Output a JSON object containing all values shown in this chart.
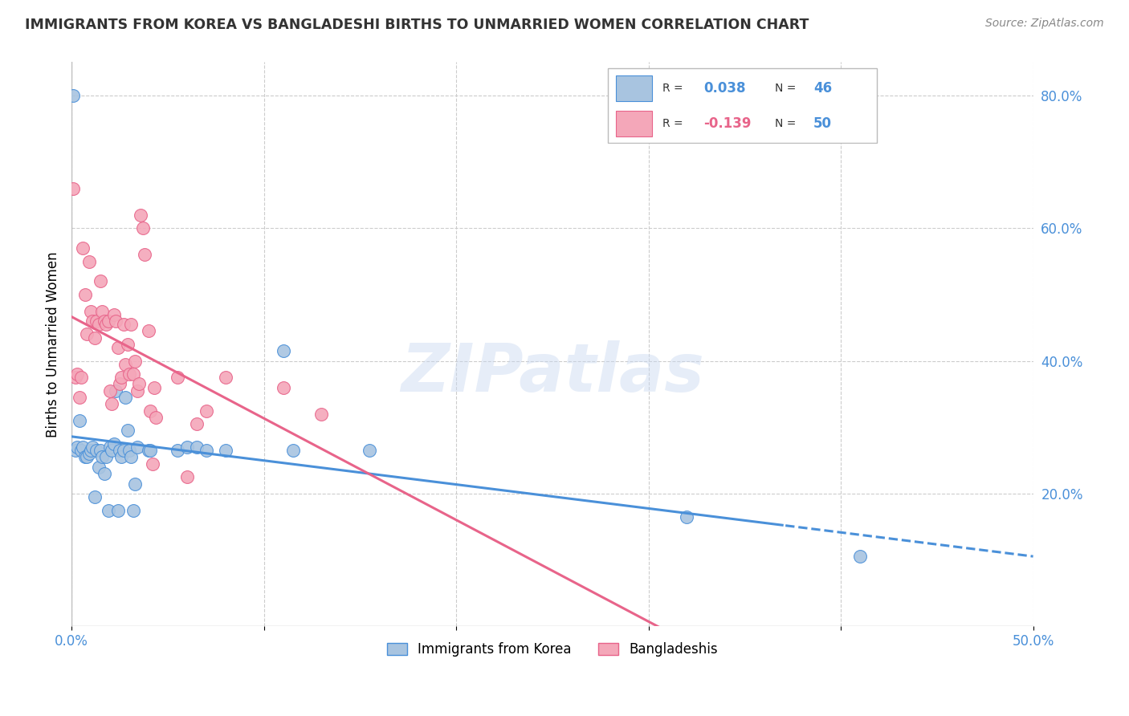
{
  "title": "IMMIGRANTS FROM KOREA VS BANGLADESHI BIRTHS TO UNMARRIED WOMEN CORRELATION CHART",
  "source": "Source: ZipAtlas.com",
  "ylabel": "Births to Unmarried Women",
  "x_min": 0.0,
  "x_max": 0.5,
  "y_min": 0.0,
  "y_max": 0.85,
  "x_ticks": [
    0.0,
    0.1,
    0.2,
    0.3,
    0.4,
    0.5
  ],
  "x_tick_labels": [
    "0.0%",
    "",
    "",
    "",
    "",
    "50.0%"
  ],
  "y_ticks_right": [
    0.2,
    0.4,
    0.6,
    0.8
  ],
  "y_tick_labels_right": [
    "20.0%",
    "40.0%",
    "60.0%",
    "80.0%"
  ],
  "color_blue": "#a8c4e0",
  "color_pink": "#f4a7b9",
  "line_blue": "#4a90d9",
  "line_pink": "#e8648a",
  "watermark": "ZIPatlas",
  "korea_data": [
    [
      0.001,
      0.8
    ],
    [
      0.002,
      0.265
    ],
    [
      0.003,
      0.27
    ],
    [
      0.004,
      0.31
    ],
    [
      0.005,
      0.265
    ],
    [
      0.006,
      0.27
    ],
    [
      0.007,
      0.255
    ],
    [
      0.008,
      0.255
    ],
    [
      0.009,
      0.26
    ],
    [
      0.01,
      0.265
    ],
    [
      0.011,
      0.27
    ],
    [
      0.012,
      0.195
    ],
    [
      0.013,
      0.265
    ],
    [
      0.014,
      0.24
    ],
    [
      0.015,
      0.265
    ],
    [
      0.016,
      0.255
    ],
    [
      0.017,
      0.23
    ],
    [
      0.018,
      0.255
    ],
    [
      0.019,
      0.175
    ],
    [
      0.02,
      0.27
    ],
    [
      0.021,
      0.265
    ],
    [
      0.022,
      0.275
    ],
    [
      0.023,
      0.355
    ],
    [
      0.024,
      0.175
    ],
    [
      0.025,
      0.265
    ],
    [
      0.026,
      0.255
    ],
    [
      0.027,
      0.265
    ],
    [
      0.028,
      0.345
    ],
    [
      0.029,
      0.295
    ],
    [
      0.03,
      0.265
    ],
    [
      0.031,
      0.255
    ],
    [
      0.032,
      0.175
    ],
    [
      0.033,
      0.215
    ],
    [
      0.034,
      0.27
    ],
    [
      0.04,
      0.265
    ],
    [
      0.041,
      0.265
    ],
    [
      0.055,
      0.265
    ],
    [
      0.06,
      0.27
    ],
    [
      0.065,
      0.27
    ],
    [
      0.07,
      0.265
    ],
    [
      0.08,
      0.265
    ],
    [
      0.11,
      0.415
    ],
    [
      0.115,
      0.265
    ],
    [
      0.155,
      0.265
    ],
    [
      0.32,
      0.165
    ],
    [
      0.41,
      0.105
    ]
  ],
  "bangla_data": [
    [
      0.001,
      0.66
    ],
    [
      0.002,
      0.375
    ],
    [
      0.003,
      0.38
    ],
    [
      0.004,
      0.345
    ],
    [
      0.005,
      0.375
    ],
    [
      0.006,
      0.57
    ],
    [
      0.007,
      0.5
    ],
    [
      0.008,
      0.44
    ],
    [
      0.009,
      0.55
    ],
    [
      0.01,
      0.475
    ],
    [
      0.011,
      0.46
    ],
    [
      0.012,
      0.435
    ],
    [
      0.013,
      0.46
    ],
    [
      0.014,
      0.455
    ],
    [
      0.015,
      0.52
    ],
    [
      0.016,
      0.475
    ],
    [
      0.017,
      0.46
    ],
    [
      0.018,
      0.455
    ],
    [
      0.019,
      0.46
    ],
    [
      0.02,
      0.355
    ],
    [
      0.021,
      0.335
    ],
    [
      0.022,
      0.47
    ],
    [
      0.023,
      0.46
    ],
    [
      0.024,
      0.42
    ],
    [
      0.025,
      0.365
    ],
    [
      0.026,
      0.375
    ],
    [
      0.027,
      0.455
    ],
    [
      0.028,
      0.395
    ],
    [
      0.029,
      0.425
    ],
    [
      0.03,
      0.38
    ],
    [
      0.031,
      0.455
    ],
    [
      0.032,
      0.38
    ],
    [
      0.033,
      0.4
    ],
    [
      0.034,
      0.355
    ],
    [
      0.035,
      0.365
    ],
    [
      0.036,
      0.62
    ],
    [
      0.037,
      0.6
    ],
    [
      0.038,
      0.56
    ],
    [
      0.04,
      0.445
    ],
    [
      0.041,
      0.325
    ],
    [
      0.042,
      0.245
    ],
    [
      0.043,
      0.36
    ],
    [
      0.044,
      0.315
    ],
    [
      0.055,
      0.375
    ],
    [
      0.06,
      0.225
    ],
    [
      0.065,
      0.305
    ],
    [
      0.07,
      0.325
    ],
    [
      0.08,
      0.375
    ],
    [
      0.11,
      0.36
    ],
    [
      0.13,
      0.32
    ]
  ]
}
